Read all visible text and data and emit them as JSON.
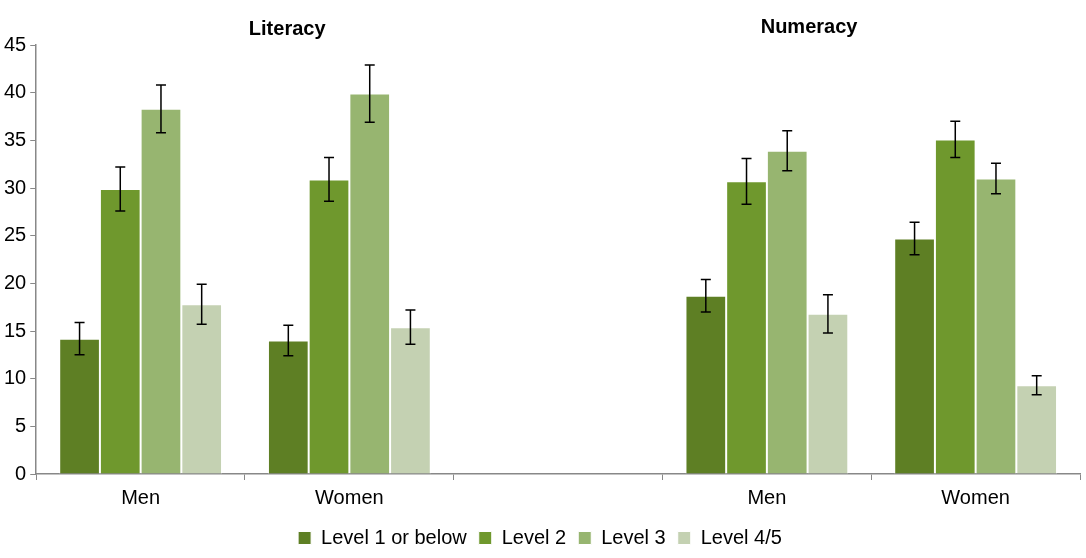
{
  "chart_data": {
    "type": "bar",
    "categories": [
      "Men",
      "Women",
      null,
      "Men",
      "Women"
    ],
    "annotations": [
      "Literacy",
      "Numeracy"
    ],
    "series": [
      {
        "name": "Level 1 or below",
        "color": "#5e7f24",
        "values": [
          14.2,
          14.0,
          null,
          18.7,
          24.7
        ],
        "errors": [
          1.7,
          1.6,
          null,
          1.7,
          1.7
        ]
      },
      {
        "name": "Level 2",
        "color": "#6f982d",
        "values": [
          29.9,
          30.9,
          null,
          30.7,
          35.1
        ],
        "errors": [
          2.3,
          2.3,
          null,
          2.4,
          1.9
        ]
      },
      {
        "name": "Level 3",
        "color": "#97b570",
        "values": [
          38.3,
          39.9,
          null,
          33.9,
          31.0
        ],
        "errors": [
          2.5,
          3.0,
          null,
          2.1,
          1.6
        ]
      },
      {
        "name": "Level 4/5",
        "color": "#c4d1b2",
        "values": [
          17.8,
          15.4,
          null,
          16.8,
          9.3
        ],
        "errors": [
          2.1,
          1.8,
          null,
          2.0,
          1.0
        ]
      }
    ],
    "ylim": [
      0,
      45
    ],
    "yticks": [
      0,
      5,
      10,
      15,
      20,
      25,
      30,
      35,
      40,
      45
    ],
    "grid": false,
    "legend": "bottom"
  }
}
